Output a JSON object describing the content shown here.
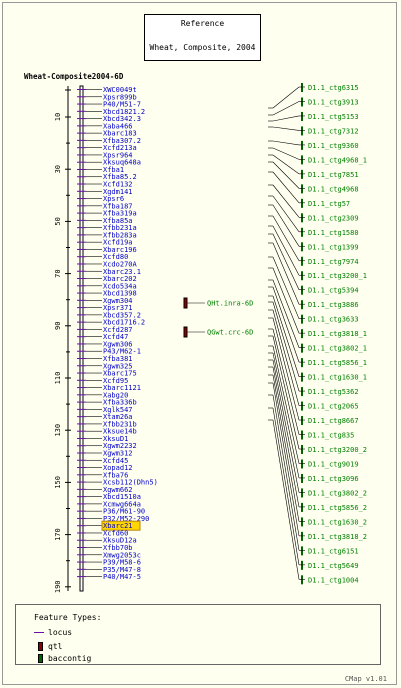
{
  "title_box": {
    "line1": "Reference",
    "line2": "Wheat, Composite, 2004"
  },
  "map_title": "Wheat-Composite2004-6D",
  "axis_ticks": [
    "10",
    "30",
    "50",
    "70",
    "90",
    "110",
    "130",
    "150",
    "170",
    "190"
  ],
  "markers": [
    "XWC0049t",
    "Xpsr899b",
    "P40/M51-7",
    "Xbcd1821.2",
    "Xbcd342.3",
    "Xaba466",
    "Xbarc183",
    "Xfba307.2",
    "Xcfd213a",
    "Xpsr964",
    "Xksuq648a",
    "Xfba1",
    "Xfba85.2",
    "Xcfd132",
    "Xgdm141",
    "Xpsr6",
    "Xfba187",
    "Xfba319a",
    "Xfba85a",
    "Xfbb231a",
    "Xfbb283a",
    "Xcfd19a",
    "Xbarc196",
    "Xcfd80",
    "Xcdo270A",
    "Xbarc23.1",
    "Xbarc202",
    "Xcdo534a",
    "Xbcd1398",
    "Xgwm304",
    "Xpsr371",
    "Xbcd357.2",
    "Xbcd1716.2",
    "Xcfd287",
    "Xcfd47",
    "Xgwm306",
    "P43/M62-1",
    "Xfba381",
    "Xgwm325",
    "Xbarc175",
    "Xcfd95",
    "Xbarc1121",
    "Xabg20",
    "Xfba336b",
    "Xglk547",
    "Xtam26a",
    "Xfbb231b",
    "Xksue14b",
    "XksuD1",
    "Xgwm2232",
    "Xgwm312",
    "Xcfd45",
    "Xopad12",
    "Xfba76",
    "Xcsb112(Dhn5)",
    "Xgwm662",
    "Xbcd1510a",
    "Xcmwg664a",
    "P36/M61-90",
    "P32/M52-290",
    "Xbarc21",
    "Xcfd60",
    "XksuD12a",
    "Xfbb70b",
    "Xmwg2053c",
    "P39/M58-6",
    "P35/M47-8",
    "P40/M47-5"
  ],
  "selected_marker": "Xbarc21",
  "qtls": [
    {
      "label": "QHt.inra-6D"
    },
    {
      "label": "QGwt.crc-6D"
    }
  ],
  "contigs": [
    "D1.1_ctg6315",
    "D1.1_ctg3913",
    "D1.1_ctg5153",
    "D1.1_ctg7312",
    "D1.1_ctg9360",
    "D1.1_ctg4968_1",
    "D1.1_ctg7851",
    "D1.1_ctg4968",
    "D1.1_ctg57",
    "D1.1_ctg2309",
    "D1.1_ctg1580",
    "D1.1_ctg1399",
    "D1.1_ctg7974",
    "D1.1_ctg3200_1",
    "D1.1_ctg5394",
    "D1.1_ctg3886",
    "D1.1_ctg3633",
    "D1.1_ctg3818_1",
    "D1.1_ctg3802_1",
    "D1.1_ctg5856_1",
    "D1.1_ctg1630_1",
    "D1.1_ctg5362",
    "D1.1_ctg2065",
    "D1.1_ctg8667",
    "D1.1_ctg835",
    "D1.1_ctg3200_2",
    "D1.1_ctg9019",
    "D1.1_ctg3096",
    "D1.1_ctg3802_2",
    "D1.1_ctg5856_2",
    "D1.1_ctg1630_2",
    "D1.1_ctg3818_2",
    "D1.1_ctg6151",
    "D1.1_ctg5649",
    "D1.1_ctg1004"
  ],
  "legend": {
    "title": "Feature Types:",
    "items": [
      {
        "label": "locus"
      },
      {
        "label": "qtl"
      },
      {
        "label": "baccontig"
      }
    ]
  },
  "colors": {
    "marker_text": "#0000cc",
    "qtl_text": "#008000",
    "qtl_box": "#8b0000",
    "contig_text": "#008000",
    "contig_box": "#006400",
    "locus_line": "#6a0dad",
    "selected_bg": "#ffd700"
  },
  "footer": "CMap v1.01"
}
